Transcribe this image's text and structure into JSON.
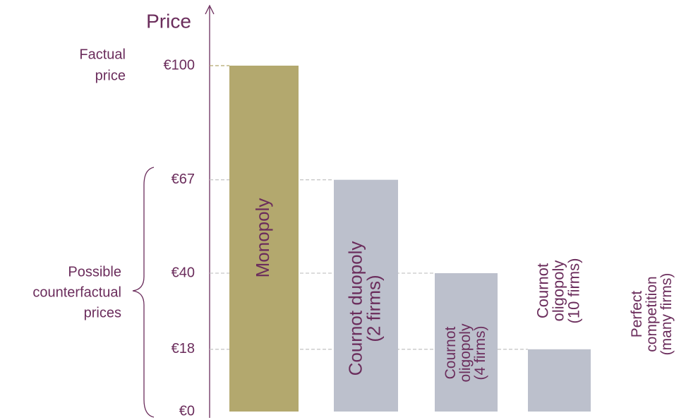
{
  "chart_data": {
    "type": "bar",
    "y_label": "Price",
    "annotations": [
      [
        "Factual",
        "price"
      ],
      [
        "Possible",
        "counterfactual",
        "prices"
      ]
    ],
    "categories": [
      [
        "Monopoly"
      ],
      [
        "Cournot duopoly",
        "(2 firms)"
      ],
      [
        "Cournot",
        "oligopoly",
        "(4 firms)"
      ],
      [
        "Cournot",
        "oligopoly",
        "(10 firms)"
      ],
      [
        "Perfect",
        "competition",
        "(many firms)"
      ]
    ],
    "values": [
      100,
      67,
      40,
      18,
      0
    ],
    "colors": [
      "#b3a86e",
      "#bcc0cc",
      "#bcc0cc",
      "#bcc0cc",
      "#bcc0cc"
    ],
    "ylim": [
      0,
      100
    ],
    "yticks": [
      {
        "value": 0,
        "label": "€0"
      },
      {
        "value": 18,
        "label": "€18"
      },
      {
        "value": 40,
        "label": "€40"
      },
      {
        "value": 67,
        "label": "€67"
      },
      {
        "value": 100,
        "label": "€100"
      }
    ],
    "grid": true
  }
}
